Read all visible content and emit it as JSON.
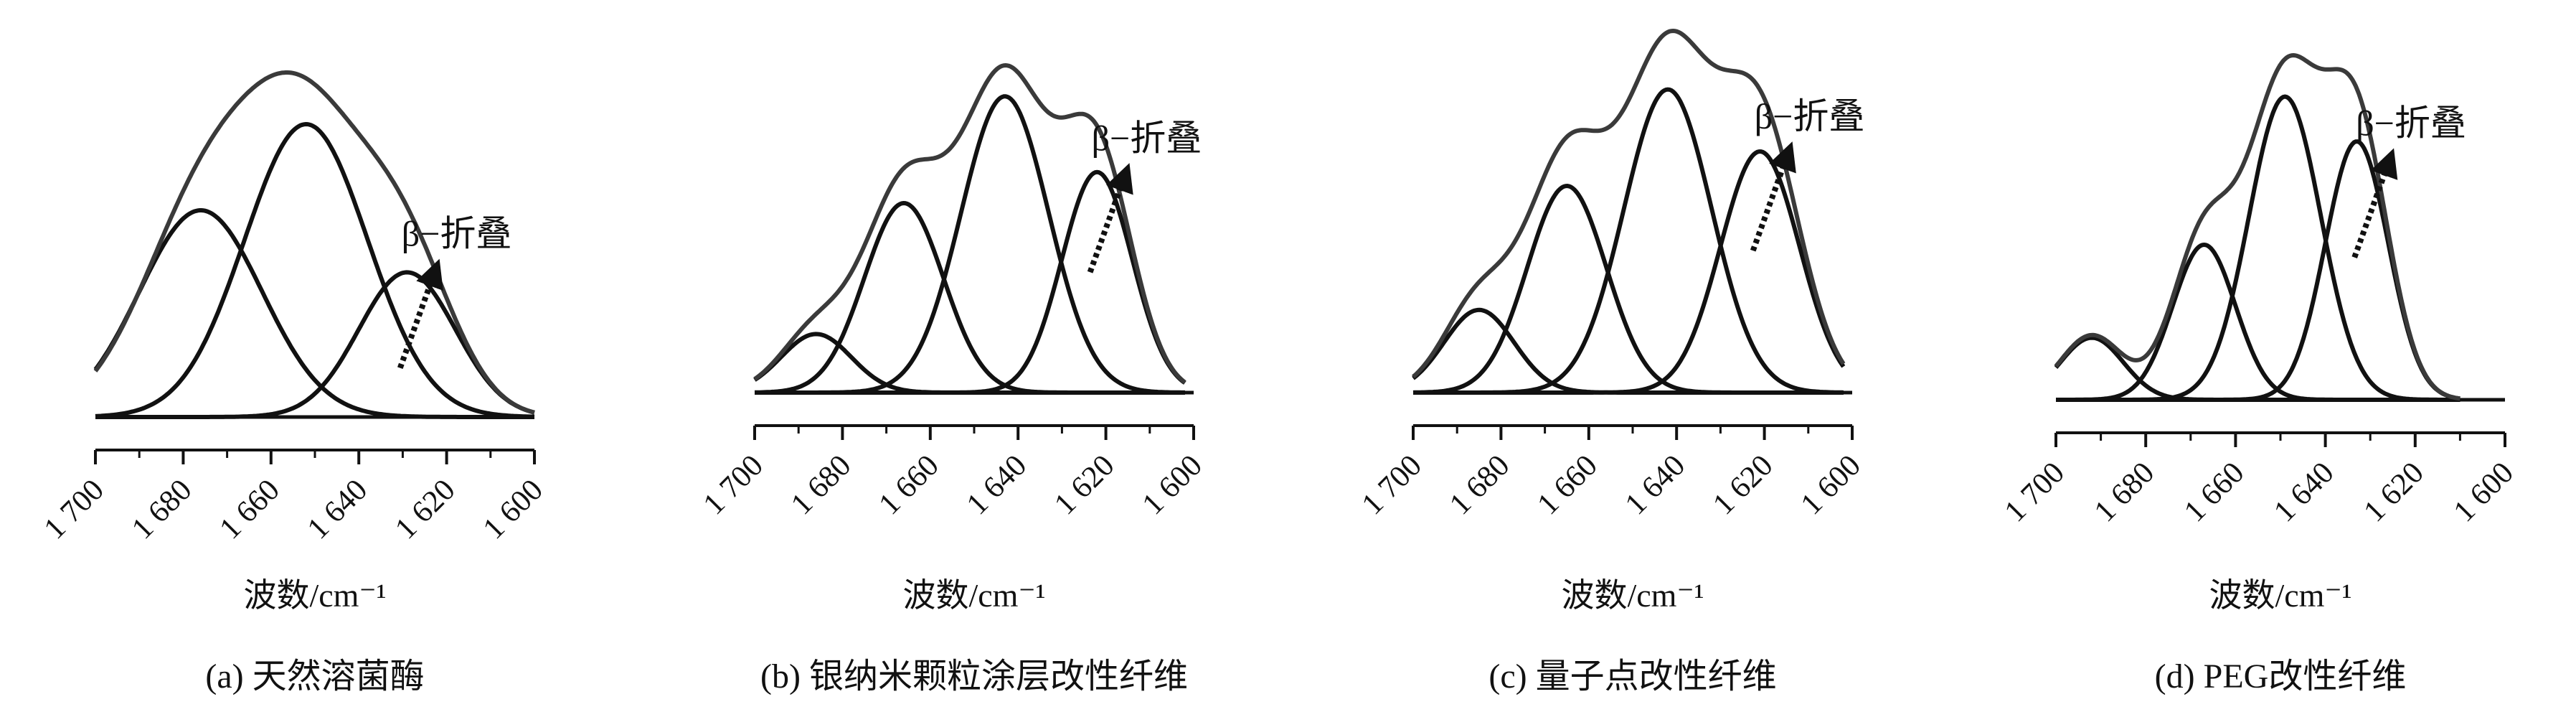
{
  "figure": {
    "background": "#ffffff",
    "line_color": "#111111",
    "envelope_color": "#3a3a3a"
  },
  "chart_data": [
    {
      "type": "line",
      "caption": "(a)  天然溶菌酶",
      "xlabel": "波数/cm⁻¹",
      "ylabel": "",
      "xlim": [
        1700,
        1600
      ],
      "x_reversed": true,
      "xticks": [
        1700,
        1680,
        1660,
        1640,
        1620,
        1600
      ],
      "xtick_labels": [
        "1 700",
        "1 680",
        "1 660",
        "1 640",
        "1 620",
        "1 600"
      ],
      "fit_range": [
        1700,
        1600
      ],
      "annotation": {
        "text": "β−折叠",
        "at_x": 1627
      },
      "envelope_peak": 1.0,
      "components": [
        {
          "center": 1676,
          "height": 0.6,
          "width": 14
        },
        {
          "center": 1652,
          "height": 0.85,
          "width": 14
        },
        {
          "center": 1629,
          "height": 0.42,
          "width": 11
        }
      ]
    },
    {
      "type": "line",
      "caption": "(b)  银纳米颗粒涂层改性纤维",
      "xlabel": "波数/cm⁻¹",
      "ylabel": "",
      "xlim": [
        1700,
        1600
      ],
      "x_reversed": true,
      "xticks": [
        1700,
        1680,
        1660,
        1640,
        1620,
        1600
      ],
      "xtick_labels": [
        "1 700",
        "1 680",
        "1 660",
        "1 640",
        "1 620",
        "1 600"
      ],
      "fit_range": [
        1700,
        1602
      ],
      "annotation": {
        "text": "β−折叠",
        "at_x": 1620
      },
      "envelope_peak": 0.95,
      "components": [
        {
          "center": 1686,
          "height": 0.17,
          "width": 8
        },
        {
          "center": 1666,
          "height": 0.55,
          "width": 9
        },
        {
          "center": 1643,
          "height": 0.86,
          "width": 10
        },
        {
          "center": 1622,
          "height": 0.64,
          "width": 8
        }
      ]
    },
    {
      "type": "line",
      "caption": "(c)  量子点改性纤维",
      "xlabel": "波数/cm⁻¹",
      "ylabel": "",
      "xlim": [
        1700,
        1600
      ],
      "x_reversed": true,
      "xticks": [
        1700,
        1680,
        1660,
        1640,
        1620,
        1600
      ],
      "xtick_labels": [
        "1 700",
        "1 680",
        "1 660",
        "1 640",
        "1 620",
        "1 600"
      ],
      "fit_range": [
        1700,
        1602
      ],
      "annotation": {
        "text": "β−折叠",
        "at_x": 1619
      },
      "envelope_peak": 1.05,
      "components": [
        {
          "center": 1685,
          "height": 0.24,
          "width": 8
        },
        {
          "center": 1665,
          "height": 0.6,
          "width": 9
        },
        {
          "center": 1642,
          "height": 0.88,
          "width": 10
        },
        {
          "center": 1621,
          "height": 0.7,
          "width": 9
        }
      ]
    },
    {
      "type": "line",
      "caption": "(d)  PEG改性纤维",
      "xlabel": "波数/cm⁻¹",
      "ylabel": "",
      "xlim": [
        1700,
        1600
      ],
      "x_reversed": true,
      "xticks": [
        1700,
        1680,
        1660,
        1640,
        1620,
        1600
      ],
      "xtick_labels": [
        "1 700",
        "1 680",
        "1 660",
        "1 640",
        "1 620",
        "1 600"
      ],
      "fit_range": [
        1700,
        1610
      ],
      "annotation": {
        "text": "β−折叠",
        "at_x": 1630
      },
      "envelope_peak": 1.0,
      "components": [
        {
          "center": 1692,
          "height": 0.18,
          "width": 7
        },
        {
          "center": 1667,
          "height": 0.45,
          "width": 7
        },
        {
          "center": 1649,
          "height": 0.88,
          "width": 8
        },
        {
          "center": 1633,
          "height": 0.75,
          "width": 7
        }
      ]
    }
  ]
}
